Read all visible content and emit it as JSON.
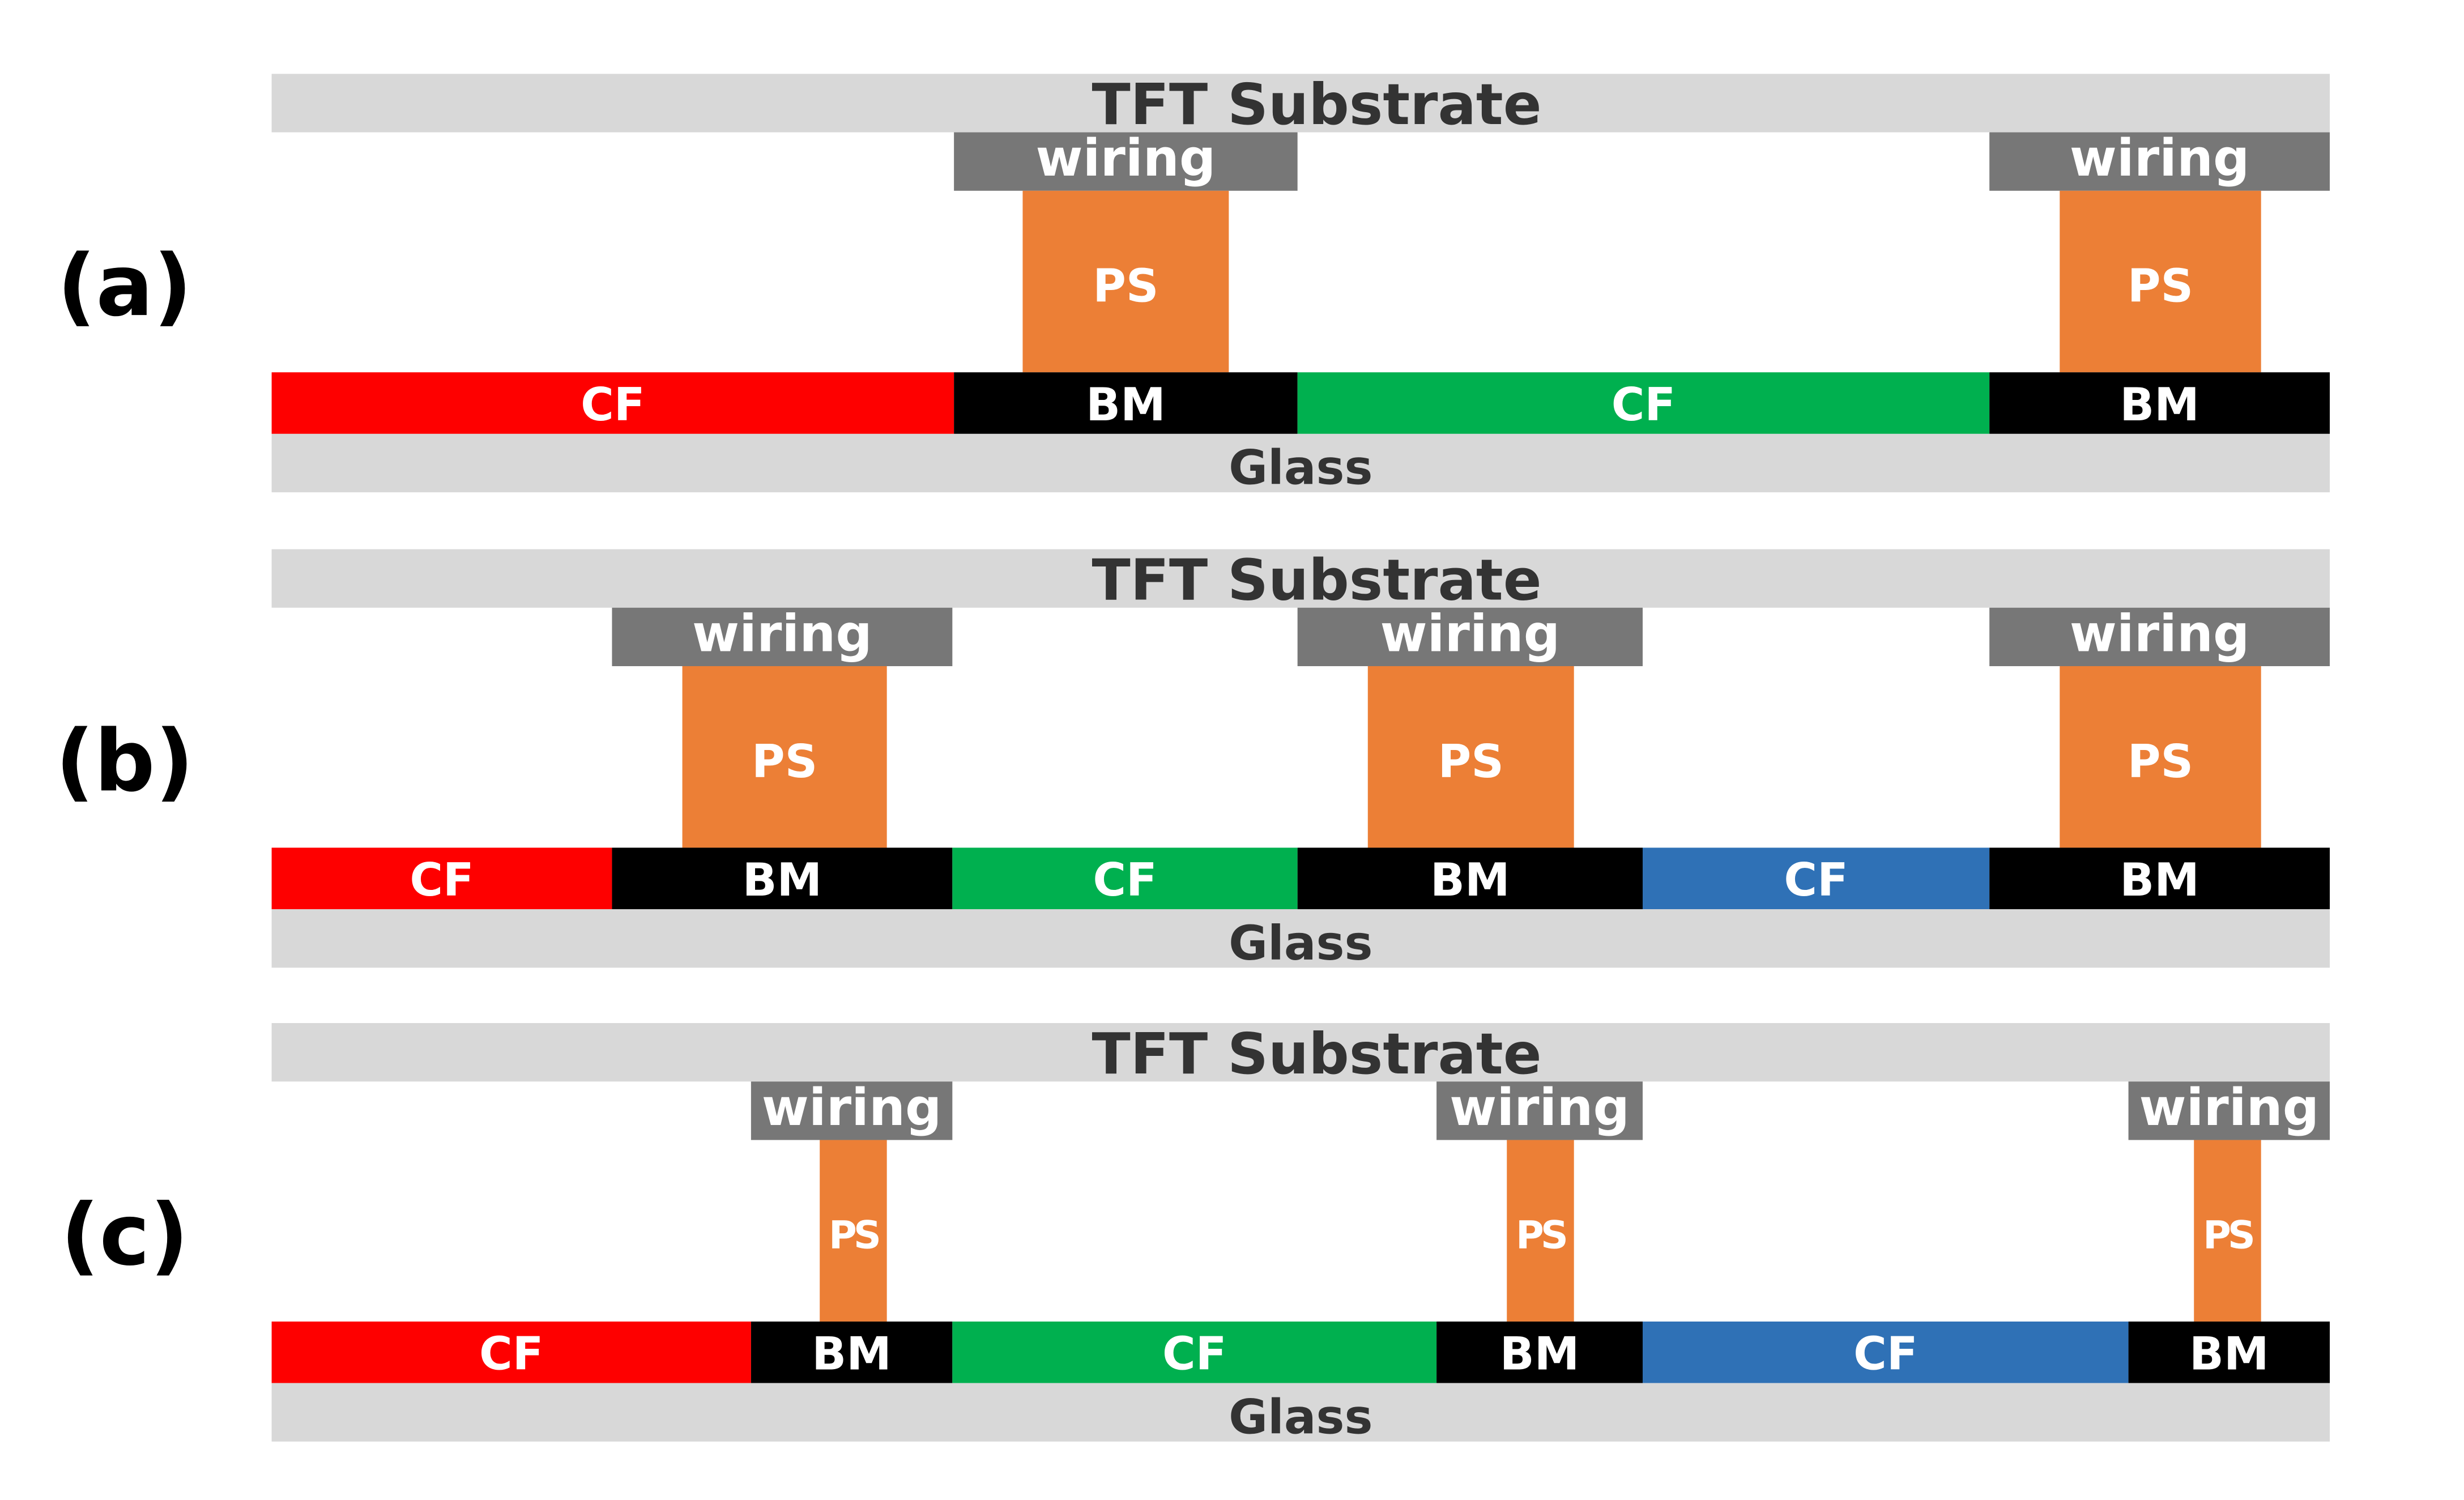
{
  "colors": {
    "substrate": "#d8d8d8",
    "wiring": "#777777",
    "ps": "#ec7f36",
    "bm": "#000000",
    "cf_red": "#fe0000",
    "cf_green": "#00b04f",
    "cf_blue": "#2f71b6",
    "label_dark": "#333333",
    "label_light": "#ffffff",
    "panel_label": "#000000"
  },
  "panels": [
    {
      "id": "a",
      "label": "(a)",
      "top_layer": "TFT Substrate",
      "bottom_layer": "Glass",
      "wiring": [
        "wiring",
        "wiring"
      ],
      "spacers": [
        "PS",
        "PS"
      ],
      "filter_row": [
        {
          "text": "CF",
          "type": "cf_red"
        },
        {
          "text": "BM",
          "type": "bm"
        },
        {
          "text": "CF",
          "type": "cf_green"
        },
        {
          "text": "BM",
          "type": "bm"
        }
      ]
    },
    {
      "id": "b",
      "label": "(b)",
      "top_layer": "TFT Substrate",
      "bottom_layer": "Glass",
      "wiring": [
        "wiring",
        "wiring",
        "wiring"
      ],
      "spacers": [
        "PS",
        "PS",
        "PS"
      ],
      "filter_row": [
        {
          "text": "CF",
          "type": "cf_red"
        },
        {
          "text": "BM",
          "type": "bm"
        },
        {
          "text": "CF",
          "type": "cf_green"
        },
        {
          "text": "BM",
          "type": "bm"
        },
        {
          "text": "CF",
          "type": "cf_blue"
        },
        {
          "text": "BM",
          "type": "bm"
        }
      ]
    },
    {
      "id": "c",
      "label": "(c)",
      "top_layer": "TFT Substrate",
      "bottom_layer": "Glass",
      "wiring": [
        "wiring",
        "wiring",
        "wiring"
      ],
      "spacers": [
        "PS",
        "PS",
        "PS"
      ],
      "filter_row": [
        {
          "text": "CF",
          "type": "cf_red"
        },
        {
          "text": "BM",
          "type": "bm"
        },
        {
          "text": "CF",
          "type": "cf_green"
        },
        {
          "text": "BM",
          "type": "bm"
        },
        {
          "text": "CF",
          "type": "cf_blue"
        },
        {
          "text": "BM",
          "type": "bm"
        }
      ]
    }
  ]
}
